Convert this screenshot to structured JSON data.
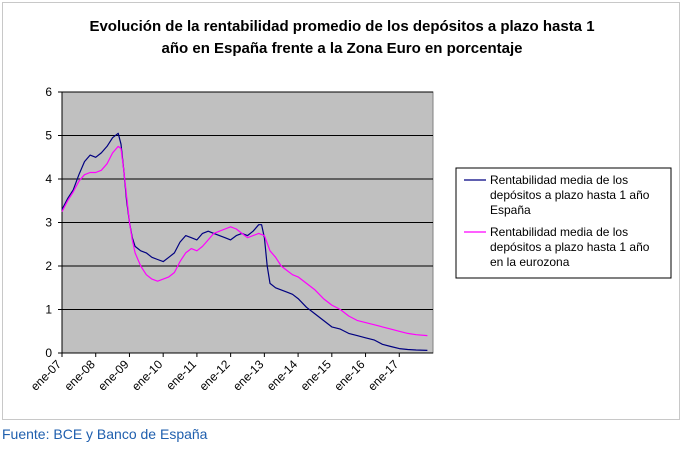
{
  "chart_data": {
    "type": "line",
    "title_lines": [
      "Evolución de la rentabilidad promedio de los depósitos a plazo hasta 1",
      "año en España frente a la Zona Euro en porcentaje"
    ],
    "xlabel": "",
    "ylabel": "",
    "ylim": [
      0,
      6
    ],
    "yticks": [
      0,
      1,
      2,
      3,
      4,
      5,
      6
    ],
    "xlim": [
      "2007-01",
      "2017-12"
    ],
    "x_tick_labels": [
      "ene-07",
      "ene-08",
      "ene-09",
      "ene-10",
      "ene-11",
      "ene-12",
      "ene-13",
      "ene-14",
      "ene-15",
      "ene-16",
      "ene-17"
    ],
    "x_tick_dates": [
      "2007-01",
      "2008-01",
      "2009-01",
      "2010-01",
      "2011-01",
      "2012-01",
      "2013-01",
      "2014-01",
      "2015-01",
      "2016-01",
      "2017-01"
    ],
    "grid": "horizontal",
    "plot_background": "#c0c0c0",
    "legend_position": "right",
    "series": [
      {
        "name": "Rentabilidad media de los depósitos a plazo hasta 1 año España",
        "legend_lines": [
          "Rentabilidad media de los",
          "depósitos a plazo hasta 1 año",
          "España"
        ],
        "color": "#000080",
        "points": [
          [
            "2007-01",
            3.3
          ],
          [
            "2007-03",
            3.55
          ],
          [
            "2007-05",
            3.75
          ],
          [
            "2007-07",
            4.1
          ],
          [
            "2007-09",
            4.4
          ],
          [
            "2007-11",
            4.55
          ],
          [
            "2008-01",
            4.5
          ],
          [
            "2008-03",
            4.6
          ],
          [
            "2008-05",
            4.75
          ],
          [
            "2008-07",
            4.95
          ],
          [
            "2008-09",
            5.05
          ],
          [
            "2008-10",
            4.8
          ],
          [
            "2008-11",
            4.2
          ],
          [
            "2008-12",
            3.5
          ],
          [
            "2009-01",
            3.0
          ],
          [
            "2009-02",
            2.65
          ],
          [
            "2009-03",
            2.45
          ],
          [
            "2009-05",
            2.35
          ],
          [
            "2009-07",
            2.3
          ],
          [
            "2009-09",
            2.2
          ],
          [
            "2009-11",
            2.15
          ],
          [
            "2010-01",
            2.1
          ],
          [
            "2010-03",
            2.2
          ],
          [
            "2010-05",
            2.3
          ],
          [
            "2010-07",
            2.55
          ],
          [
            "2010-09",
            2.7
          ],
          [
            "2010-11",
            2.65
          ],
          [
            "2011-01",
            2.6
          ],
          [
            "2011-03",
            2.75
          ],
          [
            "2011-05",
            2.8
          ],
          [
            "2011-07",
            2.75
          ],
          [
            "2011-09",
            2.7
          ],
          [
            "2011-11",
            2.65
          ],
          [
            "2012-01",
            2.6
          ],
          [
            "2012-03",
            2.7
          ],
          [
            "2012-05",
            2.75
          ],
          [
            "2012-07",
            2.7
          ],
          [
            "2012-09",
            2.8
          ],
          [
            "2012-11",
            2.95
          ],
          [
            "2012-12",
            2.95
          ],
          [
            "2013-01",
            2.65
          ],
          [
            "2013-02",
            2.0
          ],
          [
            "2013-03",
            1.6
          ],
          [
            "2013-05",
            1.5
          ],
          [
            "2013-07",
            1.45
          ],
          [
            "2013-09",
            1.4
          ],
          [
            "2013-11",
            1.35
          ],
          [
            "2014-01",
            1.25
          ],
          [
            "2014-04",
            1.05
          ],
          [
            "2014-07",
            0.9
          ],
          [
            "2014-10",
            0.75
          ],
          [
            "2015-01",
            0.6
          ],
          [
            "2015-04",
            0.55
          ],
          [
            "2015-07",
            0.45
          ],
          [
            "2015-10",
            0.4
          ],
          [
            "2016-01",
            0.35
          ],
          [
            "2016-04",
            0.3
          ],
          [
            "2016-07",
            0.2
          ],
          [
            "2016-10",
            0.15
          ],
          [
            "2017-01",
            0.1
          ],
          [
            "2017-04",
            0.08
          ],
          [
            "2017-07",
            0.07
          ],
          [
            "2017-11",
            0.06
          ]
        ]
      },
      {
        "name": "Rentabilidad media de los depósitos a plazo hasta 1 año en la eurozona",
        "legend_lines": [
          "Rentabilidad media de los",
          "depósitos a plazo hasta 1 año",
          "en la eurozona"
        ],
        "color": "#ff00ff",
        "points": [
          [
            "2007-01",
            3.25
          ],
          [
            "2007-03",
            3.5
          ],
          [
            "2007-05",
            3.7
          ],
          [
            "2007-07",
            3.95
          ],
          [
            "2007-09",
            4.1
          ],
          [
            "2007-11",
            4.15
          ],
          [
            "2008-01",
            4.15
          ],
          [
            "2008-03",
            4.2
          ],
          [
            "2008-05",
            4.35
          ],
          [
            "2008-07",
            4.6
          ],
          [
            "2008-09",
            4.75
          ],
          [
            "2008-10",
            4.7
          ],
          [
            "2008-11",
            4.2
          ],
          [
            "2008-12",
            3.6
          ],
          [
            "2009-01",
            3.0
          ],
          [
            "2009-02",
            2.6
          ],
          [
            "2009-03",
            2.3
          ],
          [
            "2009-05",
            2.0
          ],
          [
            "2009-07",
            1.8
          ],
          [
            "2009-09",
            1.7
          ],
          [
            "2009-11",
            1.65
          ],
          [
            "2010-01",
            1.7
          ],
          [
            "2010-03",
            1.75
          ],
          [
            "2010-05",
            1.85
          ],
          [
            "2010-07",
            2.1
          ],
          [
            "2010-09",
            2.3
          ],
          [
            "2010-11",
            2.4
          ],
          [
            "2011-01",
            2.35
          ],
          [
            "2011-03",
            2.45
          ],
          [
            "2011-05",
            2.6
          ],
          [
            "2011-07",
            2.75
          ],
          [
            "2011-09",
            2.8
          ],
          [
            "2011-11",
            2.85
          ],
          [
            "2012-01",
            2.9
          ],
          [
            "2012-03",
            2.85
          ],
          [
            "2012-05",
            2.75
          ],
          [
            "2012-07",
            2.65
          ],
          [
            "2012-09",
            2.7
          ],
          [
            "2012-11",
            2.75
          ],
          [
            "2013-01",
            2.7
          ],
          [
            "2013-03",
            2.35
          ],
          [
            "2013-05",
            2.2
          ],
          [
            "2013-07",
            2.0
          ],
          [
            "2013-09",
            1.9
          ],
          [
            "2013-11",
            1.8
          ],
          [
            "2014-01",
            1.75
          ],
          [
            "2014-04",
            1.6
          ],
          [
            "2014-07",
            1.45
          ],
          [
            "2014-10",
            1.25
          ],
          [
            "2015-01",
            1.1
          ],
          [
            "2015-04",
            1.0
          ],
          [
            "2015-07",
            0.85
          ],
          [
            "2015-10",
            0.75
          ],
          [
            "2016-01",
            0.7
          ],
          [
            "2016-04",
            0.65
          ],
          [
            "2016-07",
            0.6
          ],
          [
            "2016-10",
            0.55
          ],
          [
            "2017-01",
            0.5
          ],
          [
            "2017-04",
            0.45
          ],
          [
            "2017-07",
            0.42
          ],
          [
            "2017-11",
            0.4
          ]
        ]
      }
    ]
  },
  "source_note": "Fuente: BCE y Banco de España"
}
